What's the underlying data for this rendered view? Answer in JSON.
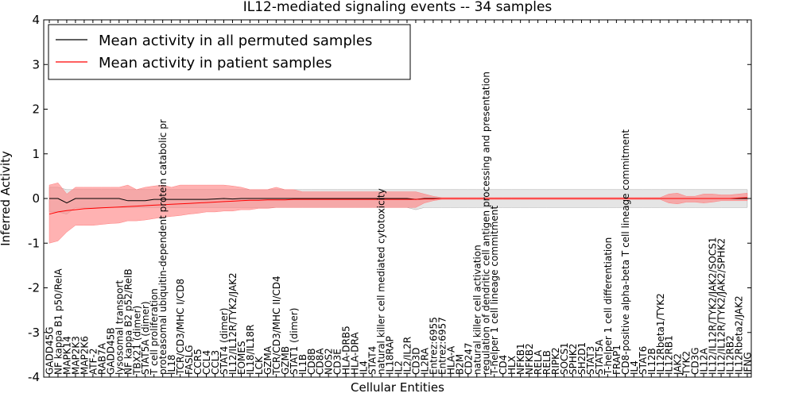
{
  "chart_data": {
    "type": "line",
    "title": "IL12-mediated signaling events -- 34 samples",
    "xlabel": "Cellular Entities",
    "ylabel": "Inferred Activity",
    "ylim": [
      -4,
      4
    ],
    "yticks": [
      -4,
      -3,
      -2,
      -1,
      0,
      1,
      2,
      3,
      4
    ],
    "legend_position": "top-left",
    "colors": {
      "permuted_line": "#000000",
      "permuted_band": "#d0d0d0",
      "patient_line": "#ff0000",
      "patient_band": "#ff7f7f"
    },
    "categories": [
      "GADD45G",
      "NF kappa B1 p50/RelA",
      "MAPK14",
      "MAP2K3",
      "MAP2K6",
      "ATF-2",
      "RAB7A",
      "GADD45B",
      "lysosomal transport",
      "NF kappa B2 p52/RelB",
      "TBX21 (dimer)",
      "STAT5A (dimer)",
      "T cell proliferation",
      "proteasomal ubiquitin-dependent protein catabolic pr",
      "IL18",
      "TCR/CD3/MHC I/CD8",
      "FASLG",
      "CCR5",
      "CCL4",
      "CCL3",
      "STAT4 (dimer)",
      "IL12/IL12R/TYK2/JAK2",
      "EOMES",
      "IL18/IL18R",
      "LCK",
      "GZMA",
      "TCR/CD3/MHC II/CD4",
      "GZMB",
      "STAT1 (dimer)",
      "IL1B",
      "CD8B",
      "CD8A",
      "NOS2",
      "CD3E",
      "HLA-DRB5",
      "HLA-DRA",
      "IL4",
      "STAT4",
      "natural killer cell mediated cytotoxicity",
      "IL18RAP",
      "IL2",
      "IL2/IL2R",
      "CD3D",
      "IL2RA",
      "Entrez:6955",
      "Entrez:6957",
      "HLA-A",
      "B2M",
      "CD247",
      "natural killer cell activation",
      "regulation of dendritic cell antigen processing and presentation",
      "T-helper 1 cell lineage commitment",
      "CD4",
      "HLX",
      "NFKB1",
      "NFKB2",
      "RELA",
      "RELB",
      "RIPK2",
      "SOCS1",
      "SPHK2",
      "SH2D1",
      "STAT3",
      "STAT5A",
      "T-helper 1 cell differentiation",
      "FRAP1",
      "CD8-positive alpha-beta T cell lineage commitment",
      "IL4",
      "STAT6",
      "IL12B",
      "IL12Rbeta1/TYK2",
      "IL12RB1",
      "JAK2",
      "TYK2",
      "CD3G",
      "IL12A",
      "IL12/IL12R/TYK2/JAK2/SOCS1",
      "IL12/IL12R/TYK2/JAK2/SPHK2",
      "IL12RB2",
      "IL12Rbeta2/JAK2",
      "IFNG"
    ],
    "series": [
      {
        "name": "Mean activity in all permuted samples",
        "values": [
          0.0,
          0.0,
          -0.1,
          0.0,
          0.0,
          0.0,
          0.0,
          0.0,
          0.0,
          -0.05,
          -0.05,
          -0.05,
          -0.02,
          -0.02,
          -0.02,
          -0.02,
          -0.02,
          -0.02,
          -0.02,
          -0.01,
          0.0,
          -0.01,
          0.0,
          0.0,
          0.0,
          0.0,
          0.0,
          0.0,
          0.0,
          0.0,
          0.0,
          0.0,
          0.0,
          0.0,
          0.0,
          0.0,
          0.0,
          0.0,
          0.0,
          0.0,
          0.0,
          0.0,
          -0.02,
          0.0,
          0.0,
          0.0,
          0.0,
          0.0,
          0.0,
          0.0,
          0.0,
          0.0,
          0.0,
          0.0,
          0.0,
          0.0,
          0.0,
          0.0,
          0.0,
          0.0,
          0.0,
          0.0,
          0.0,
          0.0,
          0.0,
          0.0,
          0.0,
          0.0,
          0.0,
          0.0,
          0.0,
          0.0,
          0.0,
          0.0,
          0.0,
          0.0,
          0.0,
          0.0,
          0.0,
          0.0,
          0.0
        ],
        "lower": [
          -0.3,
          -0.3,
          -0.35,
          -0.2,
          -0.2,
          -0.2,
          -0.2,
          -0.2,
          -0.2,
          -0.2,
          -0.2,
          -0.2,
          -0.2,
          -0.2,
          -0.2,
          -0.2,
          -0.2,
          -0.2,
          -0.2,
          -0.2,
          -0.2,
          -0.2,
          -0.2,
          -0.2,
          -0.2,
          -0.2,
          -0.2,
          -0.2,
          -0.2,
          -0.2,
          -0.2,
          -0.2,
          -0.2,
          -0.2,
          -0.2,
          -0.2,
          -0.2,
          -0.2,
          -0.2,
          -0.2,
          -0.2,
          -0.2,
          -0.25,
          -0.2,
          -0.2,
          -0.2,
          -0.2,
          -0.2,
          -0.2,
          -0.2,
          -0.2,
          -0.2,
          -0.2,
          -0.2,
          -0.2,
          -0.2,
          -0.2,
          -0.2,
          -0.2,
          -0.2,
          -0.2,
          -0.2,
          -0.2,
          -0.2,
          -0.2,
          -0.2,
          -0.2,
          -0.2,
          -0.2,
          -0.2,
          -0.2,
          -0.2,
          -0.2,
          -0.2,
          -0.2,
          -0.2,
          -0.2,
          -0.2,
          -0.2,
          -0.2,
          -0.2
        ],
        "upper": [
          0.25,
          0.25,
          0.2,
          0.2,
          0.2,
          0.2,
          0.2,
          0.2,
          0.2,
          0.2,
          0.2,
          0.2,
          0.2,
          0.2,
          0.2,
          0.2,
          0.2,
          0.2,
          0.2,
          0.2,
          0.2,
          0.2,
          0.2,
          0.2,
          0.2,
          0.2,
          0.2,
          0.2,
          0.2,
          0.2,
          0.2,
          0.2,
          0.2,
          0.2,
          0.2,
          0.2,
          0.2,
          0.2,
          0.2,
          0.2,
          0.2,
          0.2,
          0.2,
          0.2,
          0.2,
          0.2,
          0.2,
          0.2,
          0.2,
          0.2,
          0.2,
          0.2,
          0.2,
          0.2,
          0.2,
          0.2,
          0.2,
          0.2,
          0.2,
          0.2,
          0.2,
          0.2,
          0.2,
          0.2,
          0.2,
          0.2,
          0.2,
          0.2,
          0.2,
          0.2,
          0.2,
          0.2,
          0.2,
          0.2,
          0.2,
          0.2,
          0.2,
          0.2,
          0.2,
          0.2,
          0.2
        ]
      },
      {
        "name": "Mean activity in patient samples",
        "values": [
          -0.35,
          -0.3,
          -0.27,
          -0.25,
          -0.23,
          -0.22,
          -0.21,
          -0.2,
          -0.19,
          -0.18,
          -0.17,
          -0.16,
          -0.15,
          -0.14,
          -0.13,
          -0.12,
          -0.11,
          -0.1,
          -0.09,
          -0.08,
          -0.07,
          -0.06,
          -0.05,
          -0.04,
          -0.04,
          -0.03,
          -0.03,
          -0.03,
          -0.02,
          -0.02,
          -0.02,
          -0.02,
          -0.02,
          -0.02,
          -0.02,
          -0.02,
          -0.02,
          -0.02,
          -0.02,
          -0.02,
          -0.02,
          -0.02,
          -0.02,
          -0.01,
          -0.01,
          0.0,
          0.0,
          0.0,
          0.0,
          0.0,
          0.0,
          0.0,
          0.0,
          0.0,
          0.0,
          0.0,
          0.0,
          0.0,
          0.0,
          0.0,
          0.0,
          0.0,
          0.0,
          0.0,
          0.0,
          0.0,
          0.0,
          0.0,
          0.0,
          0.0,
          0.0,
          0.0,
          0.0,
          0.0,
          0.0,
          0.0,
          0.0,
          0.0,
          0.0,
          0.01,
          0.02
        ],
        "lower": [
          -1.0,
          -0.95,
          -0.75,
          -0.6,
          -0.6,
          -0.6,
          -0.58,
          -0.56,
          -0.55,
          -0.5,
          -0.5,
          -0.48,
          -0.45,
          -0.42,
          -0.4,
          -0.38,
          -0.35,
          -0.33,
          -0.3,
          -0.3,
          -0.28,
          -0.28,
          -0.25,
          -0.25,
          -0.22,
          -0.22,
          -0.2,
          -0.2,
          -0.2,
          -0.2,
          -0.2,
          -0.2,
          -0.2,
          -0.2,
          -0.2,
          -0.2,
          -0.2,
          -0.2,
          -0.2,
          -0.2,
          -0.2,
          -0.2,
          -0.2,
          -0.1,
          -0.05,
          -0.02,
          -0.02,
          -0.02,
          -0.02,
          -0.02,
          -0.02,
          -0.02,
          -0.02,
          -0.02,
          -0.02,
          -0.02,
          -0.02,
          -0.02,
          -0.02,
          -0.02,
          -0.02,
          -0.02,
          -0.02,
          -0.02,
          -0.02,
          -0.02,
          -0.02,
          -0.02,
          -0.02,
          -0.02,
          -0.02,
          -0.1,
          -0.12,
          -0.08,
          -0.08,
          -0.1,
          -0.08,
          -0.05,
          -0.05,
          -0.05,
          -0.05
        ],
        "upper": [
          0.3,
          0.35,
          0.1,
          0.25,
          0.25,
          0.25,
          0.25,
          0.25,
          0.25,
          0.3,
          0.2,
          0.25,
          0.28,
          0.3,
          0.25,
          0.3,
          0.3,
          0.3,
          0.3,
          0.3,
          0.3,
          0.28,
          0.25,
          0.2,
          0.2,
          0.2,
          0.25,
          0.2,
          0.2,
          0.15,
          0.15,
          0.15,
          0.15,
          0.15,
          0.15,
          0.15,
          0.15,
          0.15,
          0.15,
          0.15,
          0.15,
          0.15,
          0.15,
          0.1,
          0.05,
          0.02,
          0.02,
          0.02,
          0.02,
          0.02,
          0.02,
          0.02,
          0.02,
          0.02,
          0.02,
          0.02,
          0.02,
          0.02,
          0.02,
          0.02,
          0.02,
          0.02,
          0.02,
          0.02,
          0.02,
          0.02,
          0.02,
          0.02,
          0.02,
          0.02,
          0.02,
          0.1,
          0.12,
          0.05,
          0.05,
          0.1,
          0.1,
          0.08,
          0.08,
          0.1,
          0.12
        ]
      }
    ]
  }
}
